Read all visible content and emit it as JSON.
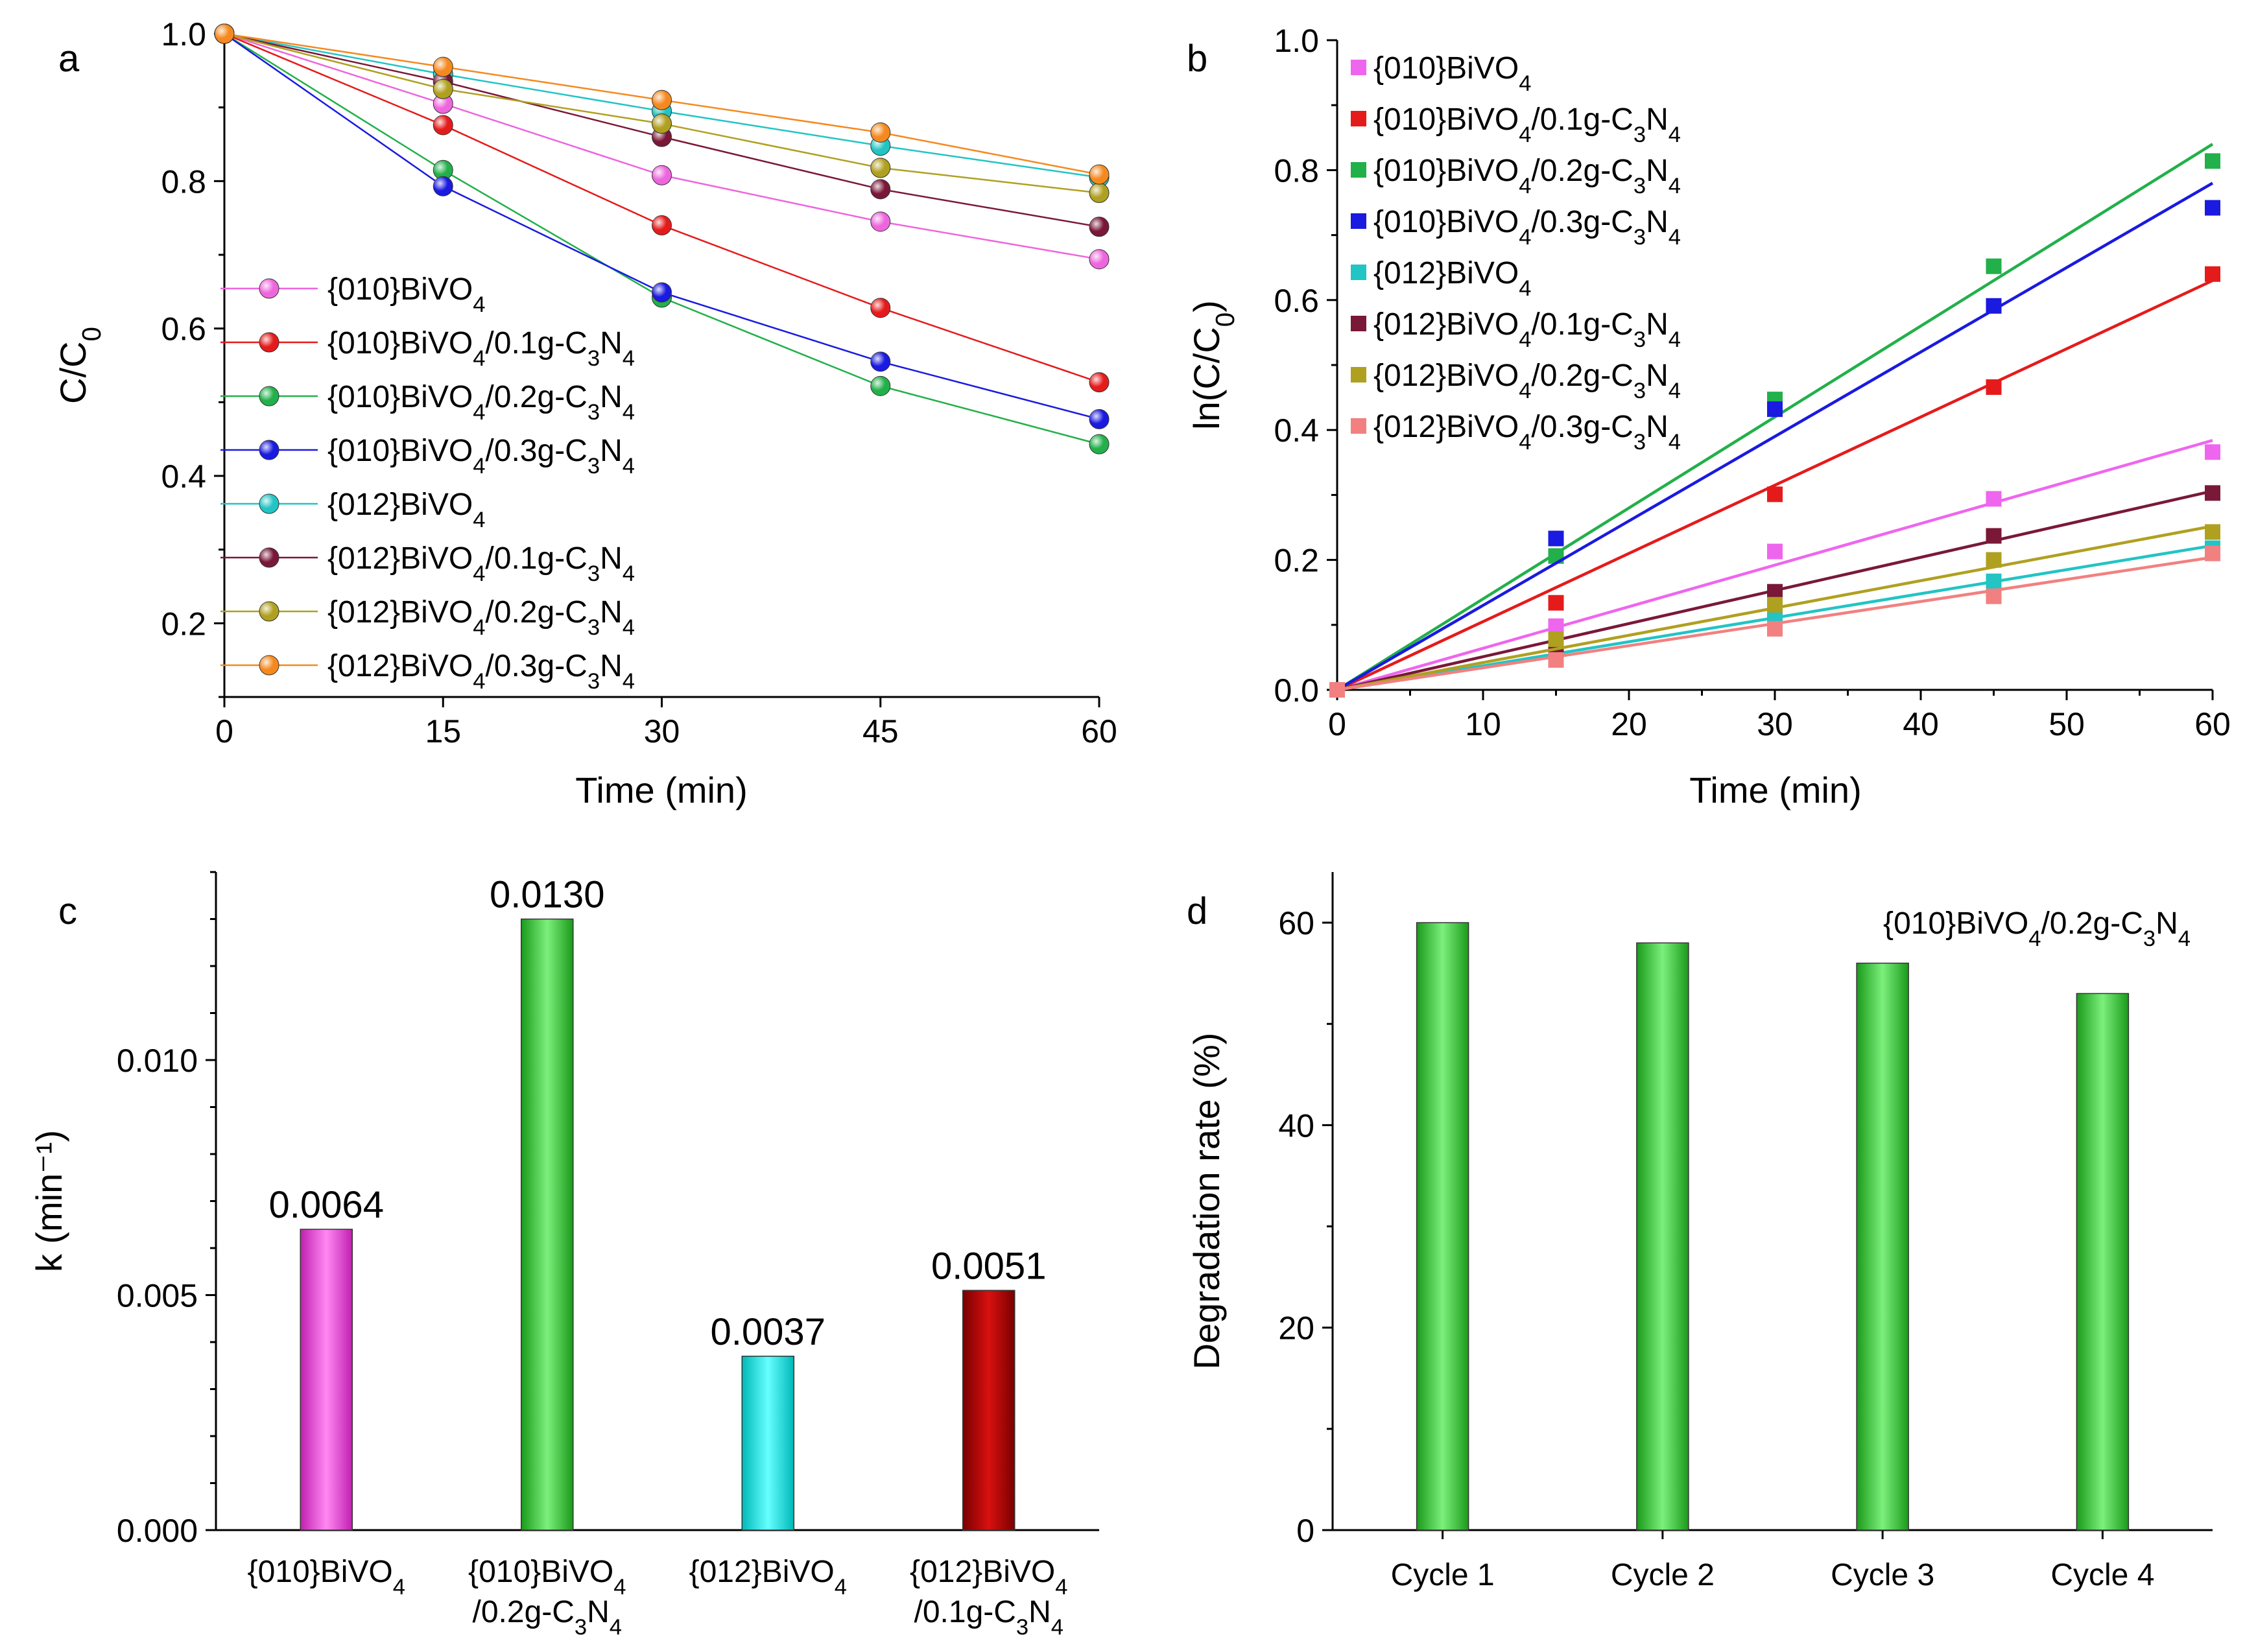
{
  "chart_data": [
    {
      "panel": "a",
      "type": "line",
      "xlabel": "Time (min)",
      "ylabel": "C/C0",
      "xlim": [
        0,
        60
      ],
      "ylim": [
        0.1,
        1.0
      ],
      "xticks": [
        "0",
        "15",
        "30",
        "45",
        "60"
      ],
      "yticks": [
        "0.2",
        "0.4",
        "0.6",
        "0.8",
        "1.0"
      ],
      "x": [
        0,
        15,
        30,
        45,
        60
      ],
      "legend_position": "left",
      "series": [
        {
          "name": "{010}BiVO4",
          "color": "#ee66dd",
          "values": [
            1.0,
            0.905,
            0.808,
            0.745,
            0.694
          ]
        },
        {
          "name": "{010}BiVO4/0.1g-C3N4",
          "color": "#e51b1b",
          "values": [
            1.0,
            0.876,
            0.74,
            0.628,
            0.527
          ]
        },
        {
          "name": "{010}BiVO4/0.2g-C3N4",
          "color": "#22b04a",
          "values": [
            1.0,
            0.815,
            0.642,
            0.522,
            0.443
          ]
        },
        {
          "name": "{010}BiVO4/0.3g-C3N4",
          "color": "#1a1ae0",
          "values": [
            1.0,
            0.793,
            0.649,
            0.555,
            0.477
          ]
        },
        {
          "name": "{012}BiVO4",
          "color": "#22c4c4",
          "values": [
            1.0,
            0.945,
            0.895,
            0.848,
            0.805
          ]
        },
        {
          "name": "{012}BiVO4/0.1g-C3N4",
          "color": "#7a1838",
          "values": [
            1.0,
            0.935,
            0.86,
            0.789,
            0.738
          ]
        },
        {
          "name": "{012}BiVO4/0.2g-C3N4",
          "color": "#b0a020",
          "values": [
            1.0,
            0.925,
            0.878,
            0.818,
            0.784
          ]
        },
        {
          "name": "{012}BiVO4/0.3g-C3N4",
          "color": "#f5891f",
          "values": [
            1.0,
            0.955,
            0.91,
            0.866,
            0.809
          ]
        }
      ]
    },
    {
      "panel": "b",
      "type": "scatter",
      "xlabel": "Time (min)",
      "ylabel": "ln(C/C0)",
      "xlim": [
        0,
        60
      ],
      "ylim": [
        0,
        1.0
      ],
      "xticks": [
        "0",
        "10",
        "20",
        "30",
        "40",
        "50",
        "60"
      ],
      "yticks": [
        "0.0",
        "0.2",
        "0.4",
        "0.6",
        "0.8",
        "1.0"
      ],
      "x": [
        0,
        15,
        30,
        45,
        60
      ],
      "fit": "linear through origin",
      "legend_position": "top-left",
      "series": [
        {
          "name": "{010}BiVO4",
          "color": "#ee66ee",
          "values": [
            0,
            0.098,
            0.213,
            0.294,
            0.366
          ],
          "fit_end": 0.384
        },
        {
          "name": "{010}BiVO4/0.1g-C3N4",
          "color": "#e51b1b",
          "values": [
            0,
            0.134,
            0.301,
            0.466,
            0.64
          ],
          "fit_end": 0.63
        },
        {
          "name": "{010}BiVO4/0.2g-C3N4",
          "color": "#22b04a",
          "values": [
            0,
            0.206,
            0.447,
            0.652,
            0.814
          ],
          "fit_end": 0.84
        },
        {
          "name": "{010}BiVO4/0.3g-C3N4",
          "color": "#1a1ae0",
          "values": [
            0,
            0.233,
            0.432,
            0.591,
            0.742
          ],
          "fit_end": 0.78
        },
        {
          "name": "{012}BiVO4",
          "color": "#22c4c4",
          "values": [
            0,
            0.056,
            0.111,
            0.167,
            0.218
          ],
          "fit_end": 0.222
        },
        {
          "name": "{012}BiVO4/0.1g-C3N4",
          "color": "#7a1838",
          "values": [
            0,
            0.067,
            0.151,
            0.237,
            0.303
          ],
          "fit_end": 0.306
        },
        {
          "name": "{012}BiVO4/0.2g-C3N4",
          "color": "#b0a020",
          "values": [
            0,
            0.078,
            0.131,
            0.2,
            0.243
          ],
          "fit_end": 0.252
        },
        {
          "name": "{012}BiVO4/0.3g-C3N4",
          "color": "#f28080",
          "values": [
            0,
            0.046,
            0.094,
            0.144,
            0.21
          ],
          "fit_end": 0.204
        }
      ]
    },
    {
      "panel": "c",
      "type": "bar",
      "xlabel": "",
      "ylabel": "k (min⁻¹)",
      "ylim": [
        0,
        0.014
      ],
      "yticks": [
        "0.000",
        "0.005",
        "0.010"
      ],
      "categories": [
        "{010}BiVO4",
        "{010}BiVO4/0.2g-C3N4",
        "{012}BiVO4",
        "{012}BiVO4/0.1g-C3N4"
      ],
      "values": [
        0.0064,
        0.013,
        0.0037,
        0.0051
      ],
      "value_labels": [
        "0.0064",
        "0.0130",
        "0.0037",
        "0.0051"
      ],
      "colors": [
        "#ee44dd",
        "#33cc33",
        "#00dddd",
        "#b00000"
      ]
    },
    {
      "panel": "d",
      "type": "bar",
      "xlabel": "",
      "ylabel": "Degradation rate (%)",
      "ylim": [
        0,
        65
      ],
      "yticks": [
        "0",
        "20",
        "40",
        "60"
      ],
      "categories": [
        "Cycle 1",
        "Cycle 2",
        "Cycle 3",
        "Cycle 4"
      ],
      "values": [
        60,
        58,
        56,
        53
      ],
      "annotation": "{010}BiVO4/0.2g-C3N4",
      "colors": [
        "#33cc33"
      ]
    }
  ]
}
